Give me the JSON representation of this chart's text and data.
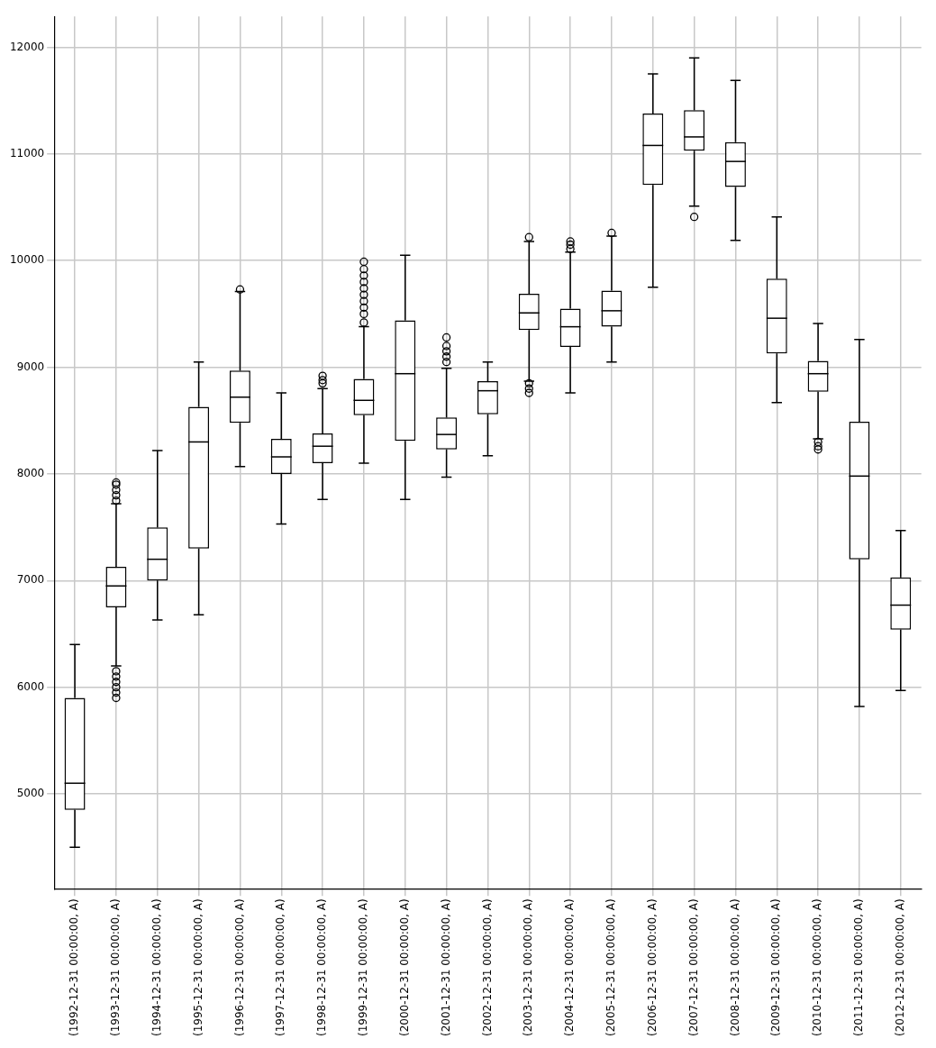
{
  "chart_data": {
    "type": "box",
    "categories": [
      "(1992-12-31 00:00:00, A)",
      "(1993-12-31 00:00:00, A)",
      "(1994-12-31 00:00:00, A)",
      "(1995-12-31 00:00:00, A)",
      "(1996-12-31 00:00:00, A)",
      "(1997-12-31 00:00:00, A)",
      "(1998-12-31 00:00:00, A)",
      "(1999-12-31 00:00:00, A)",
      "(2000-12-31 00:00:00, A)",
      "(2001-12-31 00:00:00, A)",
      "(2002-12-31 00:00:00, A)",
      "(2003-12-31 00:00:00, A)",
      "(2004-12-31 00:00:00, A)",
      "(2005-12-31 00:00:00, A)",
      "(2006-12-31 00:00:00, A)",
      "(2007-12-31 00:00:00, A)",
      "(2008-12-31 00:00:00, A)",
      "(2009-12-31 00:00:00, A)",
      "(2010-12-31 00:00:00, A)",
      "(2011-12-31 00:00:00, A)",
      "(2012-12-31 00:00:00, A)"
    ],
    "boxes": [
      {
        "low": 4500,
        "q1": 4850,
        "median": 5100,
        "q3": 5900,
        "high": 6400
      },
      {
        "low": 6200,
        "q1": 6750,
        "median": 6950,
        "q3": 7130,
        "high": 7720,
        "outliers": [
          5900,
          5950,
          6000,
          6050,
          6100,
          6150,
          7750,
          7800,
          7850,
          7900,
          7920
        ]
      },
      {
        "low": 6630,
        "q1": 7000,
        "median": 7200,
        "q3": 7500,
        "high": 8220
      },
      {
        "low": 6680,
        "q1": 7300,
        "median": 8300,
        "q3": 8630,
        "high": 9050
      },
      {
        "low": 8070,
        "q1": 8480,
        "median": 8720,
        "q3": 8970,
        "high": 9710,
        "outliers": [
          9730
        ]
      },
      {
        "low": 7530,
        "q1": 8000,
        "median": 8160,
        "q3": 8330,
        "high": 8760
      },
      {
        "low": 7760,
        "q1": 8100,
        "median": 8260,
        "q3": 8380,
        "high": 8800,
        "outliers": [
          8850,
          8880,
          8920
        ]
      },
      {
        "low": 8100,
        "q1": 8550,
        "median": 8690,
        "q3": 8890,
        "high": 9380,
        "outliers": [
          9420,
          9500,
          9560,
          9620,
          9680,
          9740,
          9800,
          9860,
          9920,
          9990
        ]
      },
      {
        "low": 7760,
        "q1": 8310,
        "median": 8940,
        "q3": 9440,
        "high": 10050
      },
      {
        "low": 7970,
        "q1": 8230,
        "median": 8370,
        "q3": 8530,
        "high": 8990,
        "outliers": [
          9050,
          9100,
          9150,
          9200,
          9280
        ]
      },
      {
        "low": 8170,
        "q1": 8560,
        "median": 8780,
        "q3": 8870,
        "high": 9050
      },
      {
        "low": 8870,
        "q1": 9350,
        "median": 9510,
        "q3": 9690,
        "high": 10180,
        "outliers": [
          8760,
          8800,
          8850,
          10220
        ]
      },
      {
        "low": 8760,
        "q1": 9190,
        "median": 9380,
        "q3": 9550,
        "high": 10080,
        "outliers": [
          10110,
          10150,
          10180
        ]
      },
      {
        "low": 9050,
        "q1": 9380,
        "median": 9530,
        "q3": 9720,
        "high": 10230,
        "outliers": [
          10260
        ]
      },
      {
        "low": 9750,
        "q1": 10710,
        "median": 11080,
        "q3": 11380,
        "high": 11750
      },
      {
        "low": 10510,
        "q1": 11030,
        "median": 11160,
        "q3": 11410,
        "high": 11900,
        "outliers": [
          10410
        ]
      },
      {
        "low": 10190,
        "q1": 10690,
        "median": 10930,
        "q3": 11110,
        "high": 11690
      },
      {
        "low": 8670,
        "q1": 9130,
        "median": 9460,
        "q3": 9830,
        "high": 10410
      },
      {
        "low": 8330,
        "q1": 8770,
        "median": 8940,
        "q3": 9060,
        "high": 9410,
        "outliers": [
          8230,
          8260,
          8300
        ]
      },
      {
        "low": 5820,
        "q1": 7200,
        "median": 7980,
        "q3": 8490,
        "high": 9260
      },
      {
        "low": 5970,
        "q1": 6540,
        "median": 6770,
        "q3": 7030,
        "high": 7470
      }
    ],
    "color": "#000000",
    "ylim": [
      4110,
      12290
    ],
    "yticks": [
      5000,
      6000,
      7000,
      8000,
      9000,
      10000,
      11000,
      12000
    ],
    "grid": true,
    "legend": false
  }
}
